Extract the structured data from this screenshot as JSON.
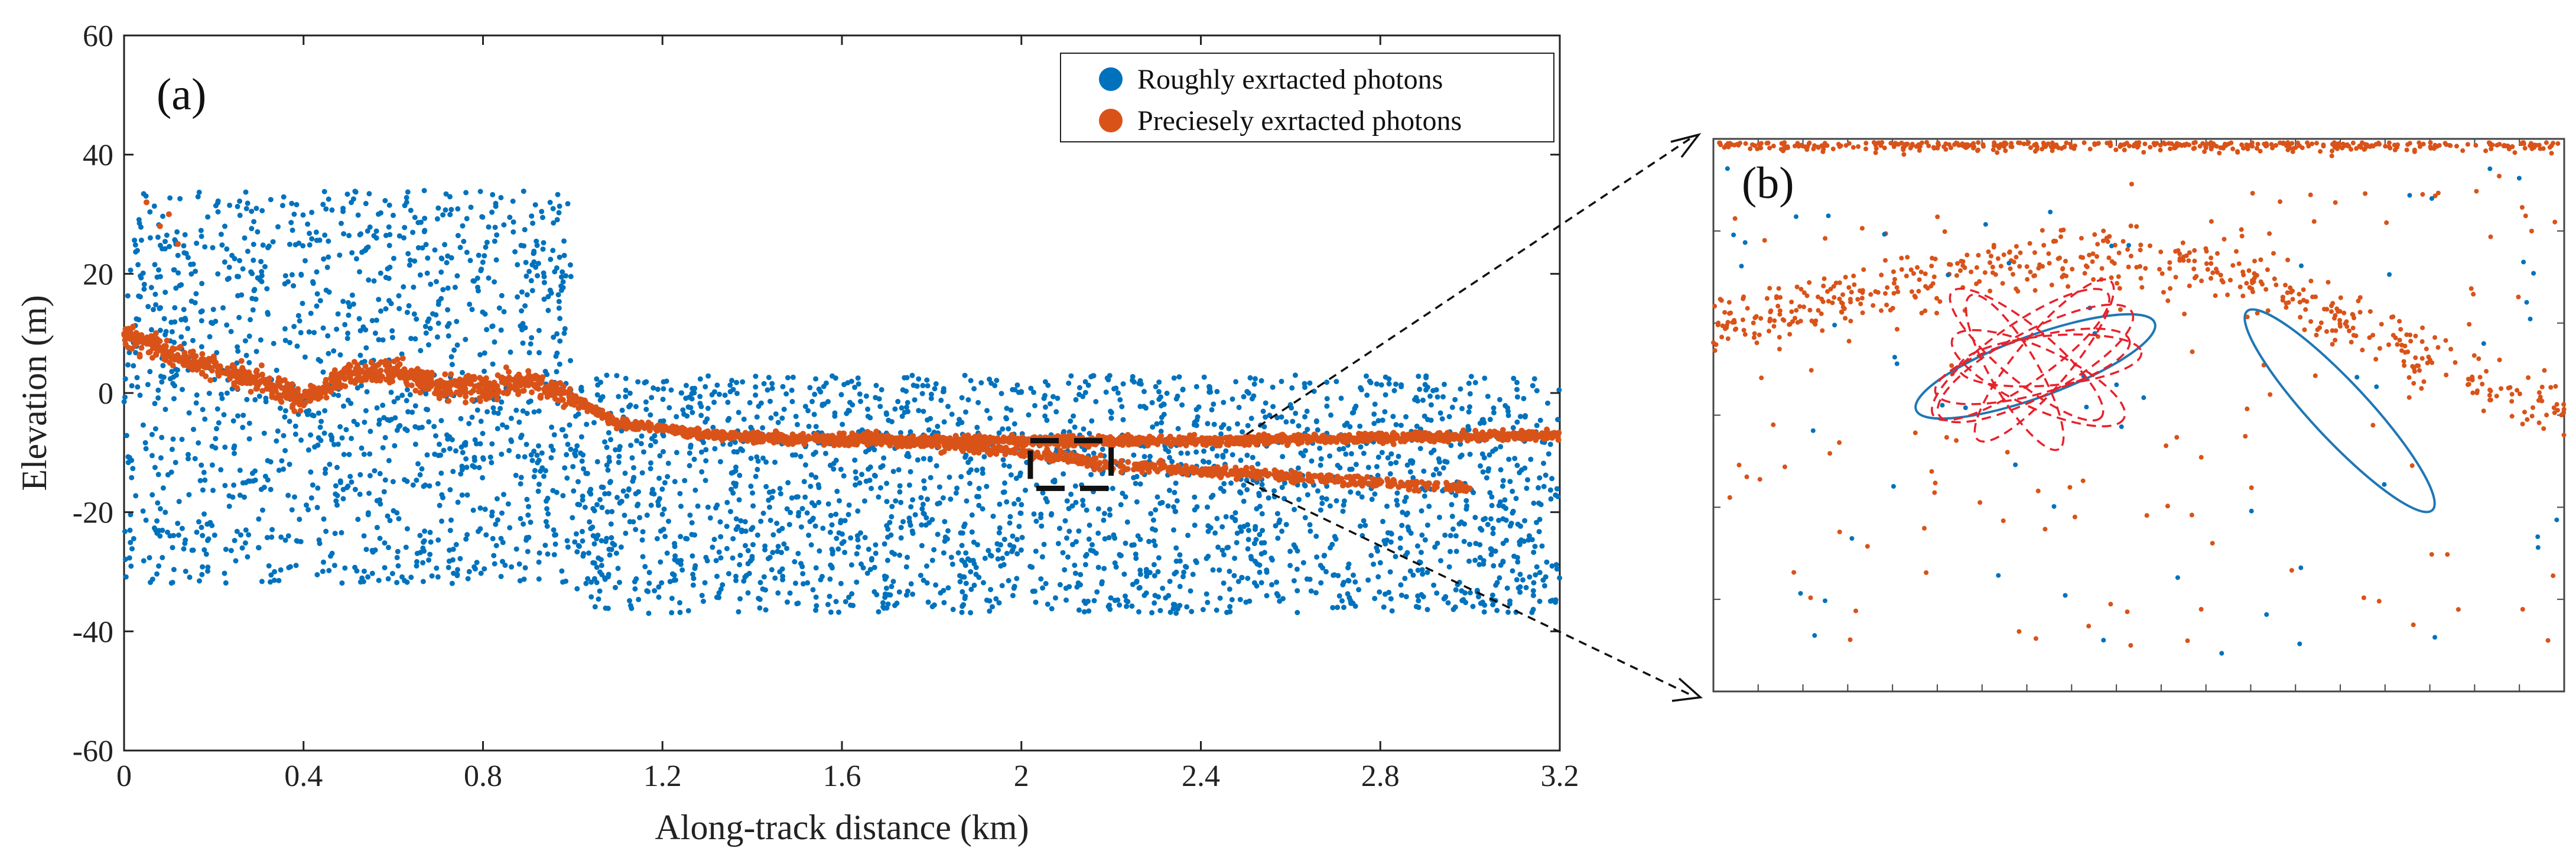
{
  "chart_data": [
    {
      "type": "scatter",
      "panel_label": "(a)",
      "xlabel": "Along-track distance  (km)",
      "ylabel": "Elevation  (m)",
      "xlim": [
        0,
        3.2
      ],
      "ylim": [
        -60,
        60
      ],
      "x_ticks": [
        "0",
        "0.4",
        "0.8",
        "1.2",
        "1.6",
        "2",
        "2.4",
        "2.8",
        "3.2"
      ],
      "x_tick_values": [
        0,
        0.4,
        0.8,
        1.2,
        1.6,
        2.0,
        2.4,
        2.8,
        3.2
      ],
      "y_ticks": [
        "60",
        "40",
        "20",
        "0",
        "-20",
        "-40",
        "-60"
      ],
      "y_tick_values": [
        60,
        40,
        20,
        0,
        -20,
        -40,
        -60
      ],
      "legend_position": "top-right",
      "series": [
        {
          "name": "Roughly exrtacted photons",
          "color": "#0072BD",
          "description_ranges": [
            {
              "x": [
                0,
                1.0
              ],
              "y": [
                -32,
                34
              ]
            },
            {
              "x": [
                1.0,
                3.2
              ],
              "y": [
                -37,
                3
              ]
            }
          ]
        },
        {
          "name": "Preciesely exrtacted photons",
          "color": "#D95319",
          "surface_trace": [
            [
              0,
              10
            ],
            [
              0.1,
              7
            ],
            [
              0.2,
              4
            ],
            [
              0.3,
              2
            ],
            [
              0.4,
              -1
            ],
            [
              0.5,
              3
            ],
            [
              0.6,
              4
            ],
            [
              0.7,
              1
            ],
            [
              0.8,
              1
            ],
            [
              0.9,
              2
            ],
            [
              1.0,
              -1
            ],
            [
              1.1,
              -5
            ],
            [
              1.3,
              -7
            ],
            [
              1.6,
              -8
            ],
            [
              2.0,
              -8
            ],
            [
              2.4,
              -8
            ],
            [
              2.8,
              -7.5
            ],
            [
              3.2,
              -7
            ]
          ],
          "lower_trace": [
            [
              1.6,
              -7
            ],
            [
              2.0,
              -10
            ],
            [
              2.2,
              -12
            ],
            [
              2.4,
              -13
            ],
            [
              2.6,
              -14
            ],
            [
              2.8,
              -15
            ],
            [
              3.0,
              -16
            ]
          ]
        }
      ],
      "zoom_box": {
        "x": [
          2.02,
          2.2
        ],
        "y": [
          -16,
          -8
        ]
      }
    },
    {
      "type": "scatter",
      "panel_label": "(b)",
      "description": "Zoomed view of dashed region in (a) with fitted ellipses",
      "series": [
        {
          "name": "Roughly exrtacted photons",
          "color": "#0072BD"
        },
        {
          "name": "Preciesely exrtacted photons",
          "color": "#D95319"
        }
      ],
      "ellipse_colors": {
        "fitted": "#1F77B4",
        "candidate": "#E8212B"
      }
    }
  ],
  "colors": {
    "blue": "#0072BD",
    "orange": "#D95319",
    "red_dash": "#E8212B",
    "ellipse_blue": "#1F77B4"
  }
}
